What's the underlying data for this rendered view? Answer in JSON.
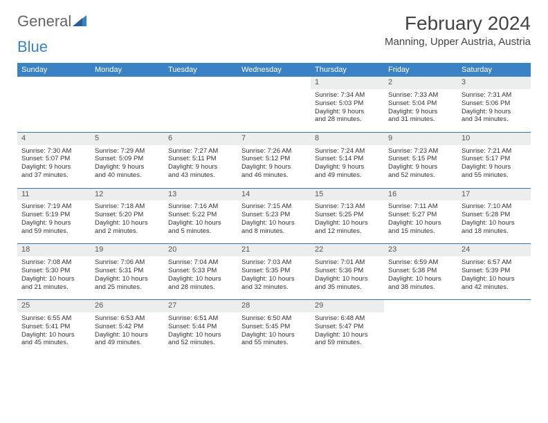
{
  "logo": {
    "text1": "General",
    "text2": "Blue"
  },
  "title": "February 2024",
  "location": "Manning, Upper Austria, Austria",
  "colors": {
    "header_bg": "#3b82c4",
    "header_text": "#ffffff",
    "daynum_bg": "#eceded",
    "row_border": "#3b6fa0",
    "logo_blue": "#3b82c4"
  },
  "weekdays": [
    "Sunday",
    "Monday",
    "Tuesday",
    "Wednesday",
    "Thursday",
    "Friday",
    "Saturday"
  ],
  "weeks": [
    [
      {
        "empty": true
      },
      {
        "empty": true
      },
      {
        "empty": true
      },
      {
        "empty": true
      },
      {
        "day": "1",
        "sunrise": "Sunrise: 7:34 AM",
        "sunset": "Sunset: 5:03 PM",
        "dl1": "Daylight: 9 hours",
        "dl2": "and 28 minutes."
      },
      {
        "day": "2",
        "sunrise": "Sunrise: 7:33 AM",
        "sunset": "Sunset: 5:04 PM",
        "dl1": "Daylight: 9 hours",
        "dl2": "and 31 minutes."
      },
      {
        "day": "3",
        "sunrise": "Sunrise: 7:31 AM",
        "sunset": "Sunset: 5:06 PM",
        "dl1": "Daylight: 9 hours",
        "dl2": "and 34 minutes."
      }
    ],
    [
      {
        "day": "4",
        "sunrise": "Sunrise: 7:30 AM",
        "sunset": "Sunset: 5:07 PM",
        "dl1": "Daylight: 9 hours",
        "dl2": "and 37 minutes."
      },
      {
        "day": "5",
        "sunrise": "Sunrise: 7:29 AM",
        "sunset": "Sunset: 5:09 PM",
        "dl1": "Daylight: 9 hours",
        "dl2": "and 40 minutes."
      },
      {
        "day": "6",
        "sunrise": "Sunrise: 7:27 AM",
        "sunset": "Sunset: 5:11 PM",
        "dl1": "Daylight: 9 hours",
        "dl2": "and 43 minutes."
      },
      {
        "day": "7",
        "sunrise": "Sunrise: 7:26 AM",
        "sunset": "Sunset: 5:12 PM",
        "dl1": "Daylight: 9 hours",
        "dl2": "and 46 minutes."
      },
      {
        "day": "8",
        "sunrise": "Sunrise: 7:24 AM",
        "sunset": "Sunset: 5:14 PM",
        "dl1": "Daylight: 9 hours",
        "dl2": "and 49 minutes."
      },
      {
        "day": "9",
        "sunrise": "Sunrise: 7:23 AM",
        "sunset": "Sunset: 5:15 PM",
        "dl1": "Daylight: 9 hours",
        "dl2": "and 52 minutes."
      },
      {
        "day": "10",
        "sunrise": "Sunrise: 7:21 AM",
        "sunset": "Sunset: 5:17 PM",
        "dl1": "Daylight: 9 hours",
        "dl2": "and 55 minutes."
      }
    ],
    [
      {
        "day": "11",
        "sunrise": "Sunrise: 7:19 AM",
        "sunset": "Sunset: 5:19 PM",
        "dl1": "Daylight: 9 hours",
        "dl2": "and 59 minutes."
      },
      {
        "day": "12",
        "sunrise": "Sunrise: 7:18 AM",
        "sunset": "Sunset: 5:20 PM",
        "dl1": "Daylight: 10 hours",
        "dl2": "and 2 minutes."
      },
      {
        "day": "13",
        "sunrise": "Sunrise: 7:16 AM",
        "sunset": "Sunset: 5:22 PM",
        "dl1": "Daylight: 10 hours",
        "dl2": "and 5 minutes."
      },
      {
        "day": "14",
        "sunrise": "Sunrise: 7:15 AM",
        "sunset": "Sunset: 5:23 PM",
        "dl1": "Daylight: 10 hours",
        "dl2": "and 8 minutes."
      },
      {
        "day": "15",
        "sunrise": "Sunrise: 7:13 AM",
        "sunset": "Sunset: 5:25 PM",
        "dl1": "Daylight: 10 hours",
        "dl2": "and 12 minutes."
      },
      {
        "day": "16",
        "sunrise": "Sunrise: 7:11 AM",
        "sunset": "Sunset: 5:27 PM",
        "dl1": "Daylight: 10 hours",
        "dl2": "and 15 minutes."
      },
      {
        "day": "17",
        "sunrise": "Sunrise: 7:10 AM",
        "sunset": "Sunset: 5:28 PM",
        "dl1": "Daylight: 10 hours",
        "dl2": "and 18 minutes."
      }
    ],
    [
      {
        "day": "18",
        "sunrise": "Sunrise: 7:08 AM",
        "sunset": "Sunset: 5:30 PM",
        "dl1": "Daylight: 10 hours",
        "dl2": "and 21 minutes."
      },
      {
        "day": "19",
        "sunrise": "Sunrise: 7:06 AM",
        "sunset": "Sunset: 5:31 PM",
        "dl1": "Daylight: 10 hours",
        "dl2": "and 25 minutes."
      },
      {
        "day": "20",
        "sunrise": "Sunrise: 7:04 AM",
        "sunset": "Sunset: 5:33 PM",
        "dl1": "Daylight: 10 hours",
        "dl2": "and 28 minutes."
      },
      {
        "day": "21",
        "sunrise": "Sunrise: 7:03 AM",
        "sunset": "Sunset: 5:35 PM",
        "dl1": "Daylight: 10 hours",
        "dl2": "and 32 minutes."
      },
      {
        "day": "22",
        "sunrise": "Sunrise: 7:01 AM",
        "sunset": "Sunset: 5:36 PM",
        "dl1": "Daylight: 10 hours",
        "dl2": "and 35 minutes."
      },
      {
        "day": "23",
        "sunrise": "Sunrise: 6:59 AM",
        "sunset": "Sunset: 5:38 PM",
        "dl1": "Daylight: 10 hours",
        "dl2": "and 38 minutes."
      },
      {
        "day": "24",
        "sunrise": "Sunrise: 6:57 AM",
        "sunset": "Sunset: 5:39 PM",
        "dl1": "Daylight: 10 hours",
        "dl2": "and 42 minutes."
      }
    ],
    [
      {
        "day": "25",
        "sunrise": "Sunrise: 6:55 AM",
        "sunset": "Sunset: 5:41 PM",
        "dl1": "Daylight: 10 hours",
        "dl2": "and 45 minutes."
      },
      {
        "day": "26",
        "sunrise": "Sunrise: 6:53 AM",
        "sunset": "Sunset: 5:42 PM",
        "dl1": "Daylight: 10 hours",
        "dl2": "and 49 minutes."
      },
      {
        "day": "27",
        "sunrise": "Sunrise: 6:51 AM",
        "sunset": "Sunset: 5:44 PM",
        "dl1": "Daylight: 10 hours",
        "dl2": "and 52 minutes."
      },
      {
        "day": "28",
        "sunrise": "Sunrise: 6:50 AM",
        "sunset": "Sunset: 5:45 PM",
        "dl1": "Daylight: 10 hours",
        "dl2": "and 55 minutes."
      },
      {
        "day": "29",
        "sunrise": "Sunrise: 6:48 AM",
        "sunset": "Sunset: 5:47 PM",
        "dl1": "Daylight: 10 hours",
        "dl2": "and 59 minutes."
      },
      {
        "empty": true
      },
      {
        "empty": true
      }
    ]
  ]
}
